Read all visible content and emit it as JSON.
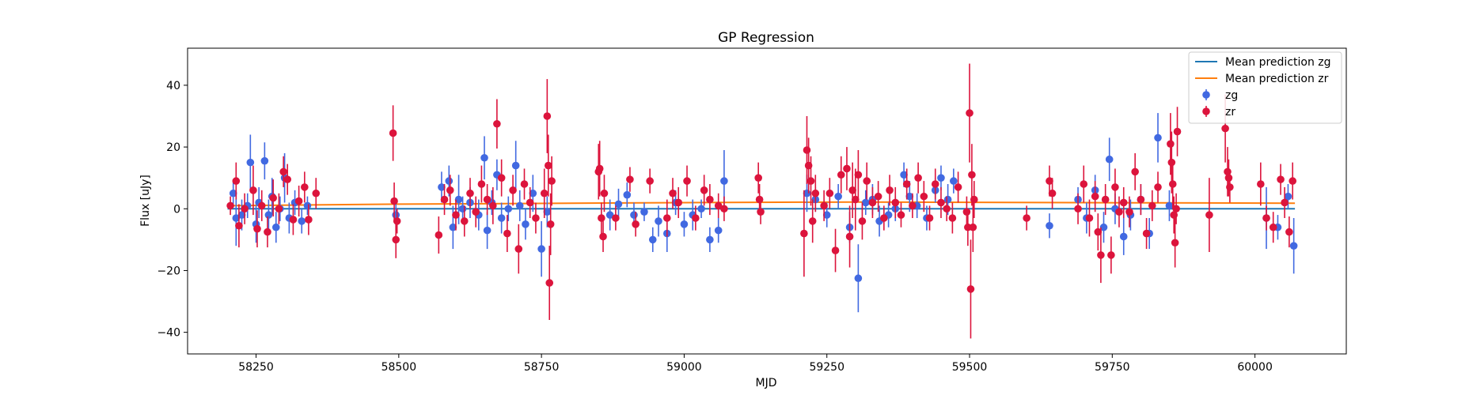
{
  "chart_data": {
    "type": "scatter",
    "title": "GP Regression",
    "xlabel": "MJD",
    "ylabel": "Flux [uJy]",
    "xlim": [
      58130,
      60160
    ],
    "ylim": [
      -47,
      52
    ],
    "xticks": [
      58250,
      58500,
      58750,
      59000,
      59250,
      59500,
      59750,
      60000
    ],
    "yticks": [
      -40,
      -20,
      0,
      20,
      40
    ],
    "grid": false,
    "legend_position": "top-right",
    "lines": [
      {
        "name": "Mean prediction zg",
        "color": "#1f77b4",
        "x": [
          58200,
          58600,
          59000,
          59500,
          60070
        ],
        "y": [
          0.0,
          0.0,
          0.0,
          0.0,
          0.0
        ]
      },
      {
        "name": "Mean prediction zr",
        "color": "#ff7f0e",
        "x": [
          58200,
          58500,
          59000,
          59300,
          59700,
          60070
        ],
        "y": [
          1.0,
          1.5,
          2.0,
          2.2,
          2.0,
          1.8
        ]
      }
    ],
    "series": [
      {
        "name": "zg",
        "color": "#4169e1",
        "points": [
          [
            58210,
            5,
            4
          ],
          [
            58215,
            -3,
            9
          ],
          [
            58225,
            -2,
            5
          ],
          [
            58235,
            1,
            4
          ],
          [
            58240,
            15,
            9
          ],
          [
            58250,
            -5,
            6
          ],
          [
            58255,
            2,
            5
          ],
          [
            58265,
            15.5,
            6
          ],
          [
            58272,
            -2,
            5
          ],
          [
            58278,
            4,
            6
          ],
          [
            58285,
            -6,
            5
          ],
          [
            58292,
            0,
            4
          ],
          [
            58300,
            10,
            8
          ],
          [
            58308,
            -3,
            5
          ],
          [
            58318,
            2,
            4
          ],
          [
            58330,
            -4,
            4
          ],
          [
            58340,
            1,
            3
          ],
          [
            58495,
            -2,
            5
          ],
          [
            58575,
            7,
            5
          ],
          [
            58588,
            9,
            5
          ],
          [
            58595,
            -6,
            7
          ],
          [
            58605,
            3,
            8
          ],
          [
            58612,
            0,
            4
          ],
          [
            58625,
            2,
            5
          ],
          [
            58640,
            -2,
            5
          ],
          [
            58650,
            16.5,
            7
          ],
          [
            58655,
            -7,
            6
          ],
          [
            58663,
            2,
            4
          ],
          [
            58672,
            11,
            5
          ],
          [
            58680,
            -3,
            5
          ],
          [
            58692,
            0,
            4
          ],
          [
            58705,
            14,
            8
          ],
          [
            58712,
            1,
            5
          ],
          [
            58722,
            -5,
            5
          ],
          [
            58735,
            5,
            6
          ],
          [
            58750,
            -13,
            9
          ],
          [
            58760,
            -1,
            5
          ],
          [
            58870,
            -2,
            5
          ],
          [
            58885,
            1.5,
            5
          ],
          [
            58900,
            4.5,
            4
          ],
          [
            58912,
            -2,
            4
          ],
          [
            58930,
            -1,
            3
          ],
          [
            58945,
            -10,
            4
          ],
          [
            58955,
            -4,
            5
          ],
          [
            58970,
            -8,
            6
          ],
          [
            58985,
            2,
            4
          ],
          [
            59000,
            -5,
            4
          ],
          [
            59015,
            -2,
            5
          ],
          [
            59030,
            0,
            3
          ],
          [
            59045,
            -10,
            4
          ],
          [
            59060,
            -7,
            4
          ],
          [
            59070,
            9,
            10
          ],
          [
            59215,
            5,
            6
          ],
          [
            59230,
            3,
            4
          ],
          [
            59250,
            -2,
            4
          ],
          [
            59270,
            4,
            4
          ],
          [
            59290,
            -6,
            5
          ],
          [
            59305,
            -22.5,
            11
          ],
          [
            59318,
            2,
            4
          ],
          [
            59330,
            3,
            5
          ],
          [
            59342,
            -4,
            5
          ],
          [
            59358,
            -2,
            4
          ],
          [
            59370,
            0,
            4
          ],
          [
            59385,
            11,
            4
          ],
          [
            59395,
            4,
            5
          ],
          [
            59408,
            1,
            4
          ],
          [
            59425,
            -3,
            4
          ],
          [
            59440,
            6,
            4
          ],
          [
            59450,
            10,
            4
          ],
          [
            59462,
            3,
            5
          ],
          [
            59472,
            9,
            4
          ],
          [
            59640,
            -5.5,
            4
          ],
          [
            59690,
            3,
            4
          ],
          [
            59705,
            -3,
            5
          ],
          [
            59720,
            6,
            5
          ],
          [
            59735,
            -6,
            5
          ],
          [
            59745,
            16,
            7
          ],
          [
            59755,
            0,
            5
          ],
          [
            59770,
            -9,
            6
          ],
          [
            59782,
            -2,
            5
          ],
          [
            59800,
            3,
            5
          ],
          [
            59815,
            -8,
            5
          ],
          [
            59830,
            23,
            8
          ],
          [
            59850,
            1,
            5
          ],
          [
            60020,
            -3,
            10
          ],
          [
            60040,
            -6,
            4
          ],
          [
            60058,
            4,
            4
          ],
          [
            60068,
            -12,
            9
          ]
        ]
      },
      {
        "name": "zr",
        "color": "#dc143c",
        "points": [
          [
            58205,
            1,
            3
          ],
          [
            58215,
            9,
            6
          ],
          [
            58220,
            -5.5,
            7
          ],
          [
            58230,
            0,
            5
          ],
          [
            58245,
            6,
            8
          ],
          [
            58252,
            -6.5,
            6
          ],
          [
            58260,
            1,
            5
          ],
          [
            58270,
            -7.5,
            5
          ],
          [
            58280,
            3.5,
            6
          ],
          [
            58290,
            0,
            5
          ],
          [
            58298,
            12,
            5
          ],
          [
            58305,
            9.5,
            5
          ],
          [
            58315,
            -3.5,
            5
          ],
          [
            58325,
            2.5,
            5
          ],
          [
            58335,
            7,
            5
          ],
          [
            58342,
            -3.5,
            5
          ],
          [
            58355,
            5,
            5
          ],
          [
            58490,
            24.5,
            9
          ],
          [
            58492,
            2.5,
            6
          ],
          [
            58495,
            -10,
            6
          ],
          [
            58497,
            -4,
            4
          ],
          [
            58570,
            -8.5,
            6
          ],
          [
            58580,
            3,
            5
          ],
          [
            58590,
            6,
            5
          ],
          [
            58600,
            -2,
            5
          ],
          [
            58615,
            -4,
            5
          ],
          [
            58625,
            5,
            5
          ],
          [
            58635,
            -1,
            5
          ],
          [
            58645,
            8,
            6
          ],
          [
            58655,
            3,
            5
          ],
          [
            58665,
            1,
            6
          ],
          [
            58672,
            27.5,
            8
          ],
          [
            58680,
            10,
            6
          ],
          [
            58690,
            -8,
            6
          ],
          [
            58700,
            6,
            5
          ],
          [
            58710,
            -13,
            8
          ],
          [
            58720,
            8,
            5
          ],
          [
            58730,
            2,
            5
          ],
          [
            58740,
            -3,
            5
          ],
          [
            58755,
            5,
            8
          ],
          [
            58760,
            30,
            12
          ],
          [
            58762,
            14,
            10
          ],
          [
            58764,
            -24,
            12
          ],
          [
            58766,
            -5,
            10
          ],
          [
            58768,
            9,
            8
          ],
          [
            58850,
            12,
            9
          ],
          [
            58852,
            13,
            9
          ],
          [
            58855,
            -3,
            5
          ],
          [
            58858,
            -9,
            5
          ],
          [
            58860,
            5,
            6
          ],
          [
            58880,
            -3,
            4
          ],
          [
            58905,
            9.5,
            4
          ],
          [
            58915,
            -5,
            4
          ],
          [
            58940,
            9,
            4
          ],
          [
            58970,
            -3,
            6
          ],
          [
            58980,
            5,
            5
          ],
          [
            58990,
            2,
            5
          ],
          [
            59005,
            9,
            5
          ],
          [
            59020,
            -3,
            4
          ],
          [
            59035,
            6,
            5
          ],
          [
            59045,
            3,
            5
          ],
          [
            59060,
            1,
            4
          ],
          [
            59070,
            0,
            4
          ],
          [
            59130,
            10,
            5
          ],
          [
            59132,
            3,
            5
          ],
          [
            59134,
            -1,
            4
          ],
          [
            59210,
            -8,
            14
          ],
          [
            59215,
            19,
            11
          ],
          [
            59218,
            14,
            9
          ],
          [
            59222,
            9,
            8
          ],
          [
            59225,
            -4,
            7
          ],
          [
            59230,
            5,
            6
          ],
          [
            59245,
            1,
            5
          ],
          [
            59255,
            5,
            5
          ],
          [
            59265,
            -13.5,
            7
          ],
          [
            59275,
            11,
            6
          ],
          [
            59285,
            13,
            7
          ],
          [
            59290,
            -9,
            10
          ],
          [
            59295,
            6,
            9
          ],
          [
            59300,
            3,
            10
          ],
          [
            59305,
            11,
            8
          ],
          [
            59312,
            -4,
            6
          ],
          [
            59320,
            9,
            6
          ],
          [
            59330,
            2,
            5
          ],
          [
            59340,
            4,
            5
          ],
          [
            59350,
            -3,
            4
          ],
          [
            59360,
            6,
            5
          ],
          [
            59370,
            2,
            5
          ],
          [
            59380,
            -2,
            4
          ],
          [
            59390,
            8,
            5
          ],
          [
            59400,
            1,
            4
          ],
          [
            59410,
            10,
            5
          ],
          [
            59420,
            4,
            5
          ],
          [
            59430,
            -3,
            4
          ],
          [
            59440,
            8,
            5
          ],
          [
            59450,
            2,
            5
          ],
          [
            59460,
            0,
            4
          ],
          [
            59470,
            -3,
            5
          ],
          [
            59480,
            7,
            5
          ],
          [
            59495,
            -1,
            5
          ],
          [
            59497,
            -6,
            6
          ],
          [
            59500,
            31,
            16
          ],
          [
            59502,
            -26,
            16
          ],
          [
            59504,
            11,
            10
          ],
          [
            59506,
            -6,
            8
          ],
          [
            59508,
            3,
            6
          ],
          [
            59600,
            -3,
            4
          ],
          [
            59640,
            9,
            5
          ],
          [
            59645,
            5,
            5
          ],
          [
            59690,
            0,
            5
          ],
          [
            59700,
            8,
            6
          ],
          [
            59710,
            -3,
            6
          ],
          [
            59720,
            4,
            5
          ],
          [
            59725,
            -7.5,
            6
          ],
          [
            59730,
            -15,
            9
          ],
          [
            59738,
            3,
            5
          ],
          [
            59748,
            -15,
            6
          ],
          [
            59755,
            7,
            6
          ],
          [
            59762,
            -1,
            5
          ],
          [
            59770,
            2,
            5
          ],
          [
            59780,
            -1,
            5
          ],
          [
            59790,
            12,
            6
          ],
          [
            59800,
            3,
            5
          ],
          [
            59810,
            -8,
            5
          ],
          [
            59820,
            1,
            5
          ],
          [
            59830,
            7,
            5
          ],
          [
            59852,
            21,
            10
          ],
          [
            59854,
            15,
            10
          ],
          [
            59856,
            8,
            8
          ],
          [
            59858,
            -2,
            6
          ],
          [
            59860,
            -11,
            8
          ],
          [
            59862,
            0,
            5
          ],
          [
            59864,
            25,
            8
          ],
          [
            59920,
            -2,
            12
          ],
          [
            59948,
            26,
            11
          ],
          [
            59952,
            12,
            8
          ],
          [
            59954,
            10,
            6
          ],
          [
            59956,
            7,
            5
          ],
          [
            60010,
            8,
            7
          ],
          [
            60020,
            -3,
            4
          ],
          [
            60032,
            -6,
            5
          ],
          [
            60045,
            9.5,
            5
          ],
          [
            60052,
            2,
            5
          ],
          [
            60060,
            -7.5,
            5
          ],
          [
            60066,
            9,
            6
          ]
        ]
      }
    ]
  }
}
